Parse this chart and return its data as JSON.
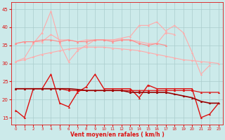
{
  "x": [
    0,
    1,
    2,
    3,
    4,
    5,
    6,
    7,
    8,
    9,
    10,
    11,
    12,
    13,
    14,
    15,
    16,
    17,
    18,
    19,
    20,
    21,
    22,
    23
  ],
  "line_jagged_pink": [
    30.5,
    31.5,
    35.5,
    38.5,
    44.5,
    35.5,
    30.5,
    33.5,
    35.0,
    36.5,
    36.5,
    36.5,
    37.0,
    37.5,
    40.5,
    40.5,
    41.5,
    39.0,
    40.5,
    38.5,
    33.0,
    27.0,
    29.5,
    null
  ],
  "line_flat_upper": [
    35.5,
    36.0,
    36.0,
    36.0,
    38.0,
    36.5,
    36.5,
    36.0,
    36.5,
    36.5,
    36.5,
    36.5,
    36.5,
    36.5,
    36.0,
    35.5,
    35.5,
    38.5,
    38.0,
    null,
    null,
    null,
    null,
    null
  ],
  "line_mid_pink": [
    35.5,
    36.0,
    36.0,
    36.5,
    36.5,
    36.0,
    36.5,
    36.0,
    36.0,
    36.5,
    36.5,
    36.0,
    36.5,
    36.5,
    35.5,
    35.0,
    35.5,
    35.0,
    null,
    null,
    null,
    null,
    null,
    null
  ],
  "line_smooth_arch": [
    30.5,
    31.0,
    31.8,
    32.5,
    33.0,
    33.5,
    34.0,
    34.2,
    34.5,
    34.5,
    34.5,
    34.2,
    34.0,
    33.8,
    33.5,
    33.0,
    32.5,
    32.0,
    31.5,
    31.0,
    30.8,
    30.5,
    30.3,
    30.0
  ],
  "line_red_jagged": [
    17.0,
    15.0,
    23.0,
    23.0,
    27.0,
    19.0,
    18.0,
    22.0,
    23.5,
    27.0,
    23.0,
    23.0,
    23.0,
    23.0,
    20.5,
    24.0,
    23.0,
    23.0,
    23.0,
    23.0,
    23.0,
    15.0,
    16.0,
    19.0
  ],
  "line_red_flat": [
    23.0,
    23.0,
    23.0,
    23.0,
    23.0,
    23.0,
    22.5,
    22.5,
    22.5,
    22.5,
    22.5,
    22.5,
    22.5,
    22.5,
    22.5,
    22.5,
    22.5,
    22.5,
    22.5,
    22.5,
    22.5,
    22.0,
    22.0,
    22.0
  ],
  "line_darkred_trend": [
    23.0,
    23.0,
    23.0,
    23.0,
    23.0,
    23.0,
    23.0,
    22.8,
    22.5,
    22.5,
    22.5,
    22.5,
    22.5,
    22.0,
    22.0,
    22.0,
    22.0,
    22.0,
    21.5,
    21.0,
    20.5,
    19.5,
    19.0,
    19.0
  ],
  "bg_color": "#cceaea",
  "grid_color": "#aacccc",
  "color_light_pink": "#ffaaaa",
  "color_mid_pink": "#ff8888",
  "color_red": "#dd1111",
  "color_dark_red": "#990000",
  "xlabel": "Vent moyen/en rafales ( km/h )",
  "yticks": [
    15,
    20,
    25,
    30,
    35,
    40,
    45
  ],
  "ylim": [
    13,
    47
  ],
  "xlim": [
    -0.5,
    23.5
  ]
}
